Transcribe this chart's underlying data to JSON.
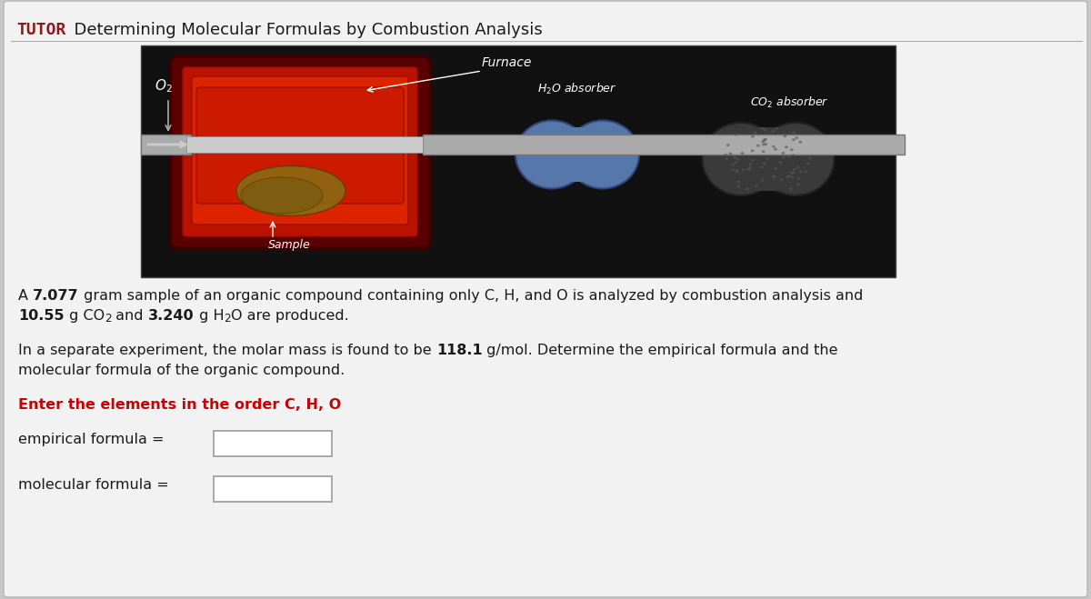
{
  "title_tutor": "TUTOR",
  "title_main": "  Determining Molecular Formulas by Combustion Analysis",
  "title_color_tutor": "#8B1A1A",
  "title_color_main": "#1a1a1a",
  "title_fontsize": 13,
  "bg_color": "#c8c8c8",
  "card_color": "#f2f2f2",
  "card_edge": "#bbbbbb",
  "img_bg": "#111111",
  "red_color": "#cc0000",
  "text_color": "#1a1a1a",
  "white": "#ffffff",
  "text_fontsize": 11.5,
  "red_instruction": "Enter the elements in the order C, H, O",
  "label_empirical": "empirical formula =",
  "label_molecular": "molecular formula ="
}
